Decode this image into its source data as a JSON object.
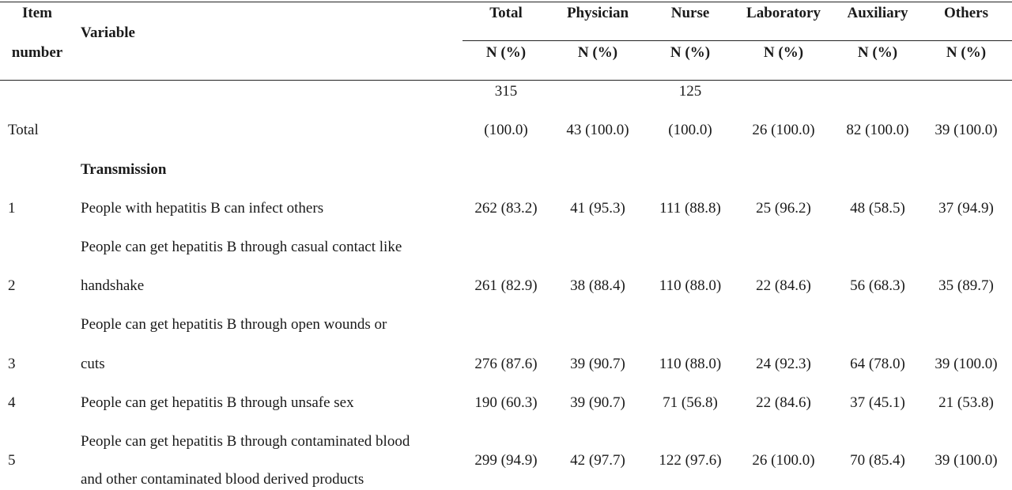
{
  "header": {
    "item_number_line1": "Item",
    "item_number_line2": "number",
    "variable": "Variable",
    "columns": [
      "Total",
      "Physician",
      "Nurse",
      "Laboratory",
      "Auxiliary",
      "Others"
    ],
    "unit": "N (%)"
  },
  "total_row": {
    "label": "Total",
    "total_line1": "315",
    "total_line2": "(100.0)",
    "physician": "43 (100.0)",
    "nurse_line1": "125",
    "nurse_line2": "(100.0)",
    "laboratory": "26 (100.0)",
    "auxiliary": "82 (100.0)",
    "others": "39 (100.0)"
  },
  "section": "Transmission",
  "rows": [
    {
      "num": "1",
      "line1": "People with hepatitis B can infect others",
      "values": [
        "262 (83.2)",
        "41 (95.3)",
        "111 (88.8)",
        "25 (96.2)",
        "48 (58.5)",
        "37 (94.9)"
      ]
    },
    {
      "num": "2",
      "line1": "People can get hepatitis B through casual contact like",
      "line2": "handshake",
      "values": [
        "261 (82.9)",
        "38 (88.4)",
        "110 (88.0)",
        "22 (84.6)",
        "56 (68.3)",
        "35 (89.7)"
      ]
    },
    {
      "num": "3",
      "line1": "People can get hepatitis B through open wounds or",
      "line2": "cuts",
      "values": [
        "276 (87.6)",
        "39 (90.7)",
        "110 (88.0)",
        "24 (92.3)",
        "64 (78.0)",
        "39 (100.0)"
      ]
    },
    {
      "num": "4",
      "line1": "People can get hepatitis B through unsafe sex",
      "values": [
        "190 (60.3)",
        "39 (90.7)",
        "71 (56.8)",
        "22 (84.6)",
        "37 (45.1)",
        "21 (53.8)"
      ]
    },
    {
      "num": "5",
      "line1": "People can get hepatitis B through contaminated blood",
      "line2": "and other contaminated blood derived products",
      "values": [
        "299 (94.9)",
        "42 (97.7)",
        "122 (97.6)",
        "26 (100.0)",
        "70 (85.4)",
        "39 (100.0)"
      ]
    }
  ]
}
